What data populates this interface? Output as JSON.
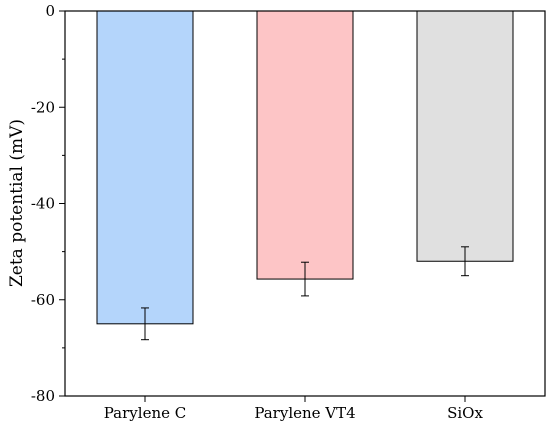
{
  "chart_data": {
    "type": "bar",
    "title": "",
    "xlabel": "",
    "ylabel": "Zeta potential (mV)",
    "ylim": [
      -80,
      0
    ],
    "yticks": [
      0,
      -20,
      -40,
      -60,
      -80
    ],
    "ytick_labels": [
      "0",
      "-20",
      "-40",
      "-60",
      "-80"
    ],
    "grid": false,
    "legend": "none",
    "categories": [
      "Parylene C",
      "Parylene VT4",
      "SiOx"
    ],
    "values": [
      -65,
      -55.7,
      -52
    ],
    "errors": [
      3.3,
      3.5,
      3
    ],
    "colors": [
      "#b4d5fb",
      "#fdc5c6",
      "#e0e0e0"
    ]
  }
}
